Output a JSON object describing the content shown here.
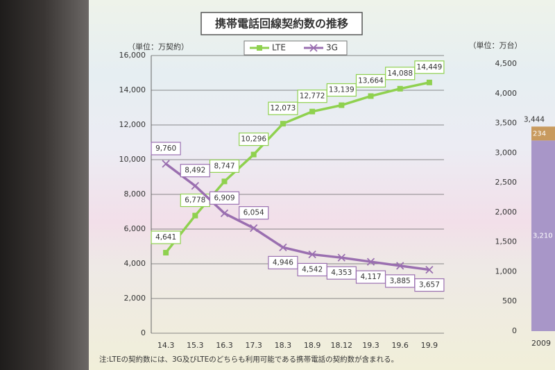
{
  "chart_data": [
    {
      "type": "line",
      "title": "携帯電話回線契約数の推移",
      "unit": "（単位：万契約）",
      "note": "注:LTEの契約数には、3G及びLTEのどちらも利用可能である携帯電話の契約数が含まれる。",
      "categories": [
        "14.3",
        "15.3",
        "16.3",
        "17.3",
        "18.3",
        "18.9",
        "18.12",
        "19.3",
        "19.6",
        "19.9"
      ],
      "series": [
        {
          "name": "LTE",
          "color": "#8fd14f",
          "marker": "square",
          "values": [
            4641,
            6778,
            8747,
            10296,
            12073,
            12772,
            13139,
            13664,
            14088,
            14449
          ],
          "value_labels": [
            "4,641",
            "6,778",
            "8,747",
            "10,296",
            "12,073",
            "12,772",
            "13,139",
            "13,664",
            "14,088",
            "14,449"
          ]
        },
        {
          "name": "3G",
          "color": "#9a6fb0",
          "marker": "x",
          "values": [
            9760,
            8492,
            6909,
            6054,
            4946,
            4542,
            4353,
            4117,
            3885,
            3657
          ],
          "value_labels": [
            "9,760",
            "8,492",
            "6,909",
            "6,054",
            "4,946",
            "4,542",
            "4,353",
            "4,117",
            "3,885",
            "3,657"
          ]
        }
      ],
      "ylim": [
        0,
        16000
      ],
      "yticks": [
        0,
        {
          "value": 2000,
          "label": "2,000"
        },
        {
          "value": 4000,
          "label": "4,000"
        },
        {
          "value": 6000,
          "label": "6,000"
        },
        {
          "value": 8000,
          "label": "8,000"
        },
        {
          "value": 10000,
          "label": "10,000"
        },
        {
          "value": 12000,
          "label": "12,000"
        },
        {
          "value": 14000,
          "label": "14,000"
        },
        {
          "value": 16000,
          "label": "16,000"
        }
      ],
      "grid": true
    },
    {
      "type": "stacked-bar",
      "unit": "（単位：万台）",
      "categories": [
        "2009"
      ],
      "series": [
        {
          "color": "#a896c8",
          "values": [
            3210
          ],
          "value_labels": [
            "3,210"
          ]
        },
        {
          "color": "#c89a5e",
          "values": [
            234
          ]
        }
      ],
      "totals": [
        3444
      ],
      "total_labels": [
        "3,444"
      ],
      "ylim": [
        0,
        4500
      ],
      "yticks": [
        0,
        500,
        {
          "value": 1000,
          "label": "1,000"
        },
        {
          "value": 1500,
          "label": "1,500"
        },
        {
          "value": 2000,
          "label": "2,000"
        },
        {
          "value": 2500,
          "label": "2,500"
        },
        {
          "value": 3000,
          "label": "3,000"
        },
        {
          "value": 3500,
          "label": "3,500"
        },
        {
          "value": 4000,
          "label": "4,000"
        },
        {
          "value": 4500,
          "label": "4,500"
        }
      ],
      "grid": false
    }
  ]
}
